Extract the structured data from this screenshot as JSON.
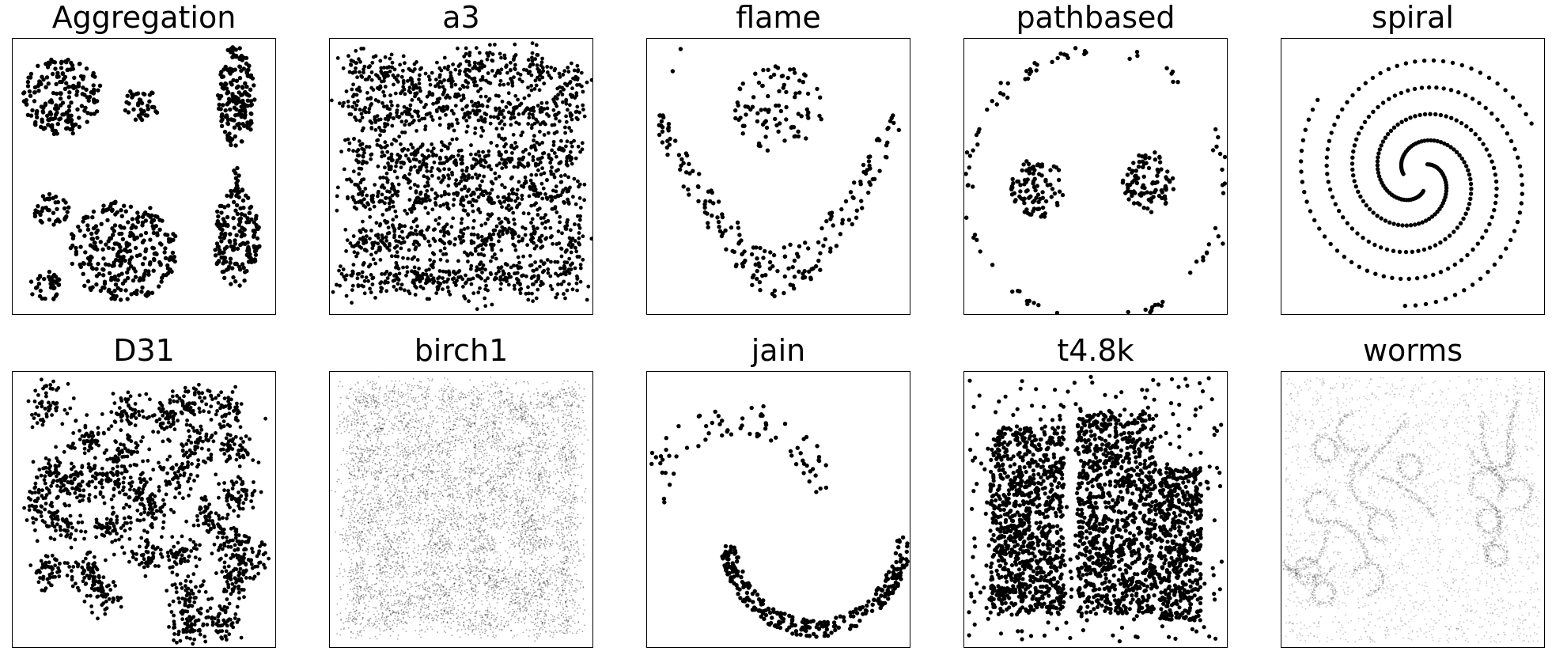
{
  "figure": {
    "panels": [
      {
        "title": "Aggregation"
      },
      {
        "title": "a3"
      },
      {
        "title": "flame"
      },
      {
        "title": "pathbased"
      },
      {
        "title": "spiral"
      },
      {
        "title": "D31"
      },
      {
        "title": "birch1"
      },
      {
        "title": "jain"
      },
      {
        "title": "t4.8k"
      },
      {
        "title": "worms"
      }
    ]
  },
  "chart_data": [
    {
      "type": "scatter",
      "title": "Aggregation",
      "xticks": [],
      "yticks": [],
      "grid": false,
      "marker_color": "#000000",
      "clusters": [
        {
          "shape": "blob",
          "center": [
            0.19,
            0.79
          ],
          "spread": [
            0.15,
            0.14
          ],
          "n": 200
        },
        {
          "shape": "blob",
          "center": [
            0.49,
            0.76
          ],
          "spread": [
            0.07,
            0.06
          ],
          "n": 40
        },
        {
          "shape": "blob",
          "center": [
            0.85,
            0.79
          ],
          "spread": [
            0.07,
            0.19
          ],
          "n": 180
        },
        {
          "shape": "blob",
          "center": [
            0.85,
            0.28
          ],
          "spread": [
            0.09,
            0.18
          ],
          "n": 170
        },
        {
          "shape": "line",
          "from": [
            0.85,
            0.53
          ],
          "to": [
            0.85,
            0.43
          ],
          "n": 12
        },
        {
          "shape": "blob",
          "center": [
            0.42,
            0.23
          ],
          "spread": [
            0.21,
            0.18
          ],
          "n": 300
        },
        {
          "shape": "blob",
          "center": [
            0.15,
            0.38
          ],
          "spread": [
            0.07,
            0.06
          ],
          "n": 40
        },
        {
          "shape": "blob",
          "center": [
            0.13,
            0.1
          ],
          "spread": [
            0.06,
            0.06
          ],
          "n": 35
        }
      ]
    },
    {
      "type": "scatter",
      "title": "a3",
      "xticks": [],
      "yticks": [],
      "grid": false,
      "marker_color": "#000000",
      "clusters": [
        {
          "shape": "grid-blobs",
          "rows": 6,
          "cols": 8,
          "n_per_blob": 45,
          "spread": 0.038,
          "range": [
            [
              0.06,
              0.95
            ],
            [
              0.06,
              0.94
            ]
          ]
        }
      ]
    },
    {
      "type": "scatter",
      "title": "flame",
      "xticks": [],
      "yticks": [],
      "grid": false,
      "marker_color": "#000000",
      "clusters": [
        {
          "shape": "blob",
          "center": [
            0.5,
            0.74
          ],
          "spread": [
            0.17,
            0.16
          ],
          "n": 90
        },
        {
          "shape": "u-shape",
          "x_range": [
            0.04,
            0.96
          ],
          "bottom": 0.05,
          "top": 0.66,
          "thickness": 0.2,
          "n": 200
        },
        {
          "shape": "points",
          "points": [
            [
              0.13,
              0.96
            ],
            [
              0.1,
              0.88
            ]
          ]
        }
      ]
    },
    {
      "type": "scatter",
      "title": "pathbased",
      "xticks": [],
      "yticks": [],
      "grid": false,
      "marker_color": "#000000",
      "clusters": [
        {
          "shape": "arc",
          "center": [
            0.5,
            0.46
          ],
          "radius": 0.49,
          "start_deg": -130,
          "end_deg": 240,
          "n": 110
        },
        {
          "shape": "blob",
          "center": [
            0.28,
            0.46
          ],
          "spread": [
            0.1,
            0.11
          ],
          "n": 95
        },
        {
          "shape": "blob",
          "center": [
            0.7,
            0.48
          ],
          "spread": [
            0.1,
            0.11
          ],
          "n": 95
        }
      ]
    },
    {
      "type": "scatter",
      "title": "spiral",
      "xticks": [],
      "yticks": [],
      "grid": false,
      "marker_color": "#000000",
      "clusters": [
        {
          "shape": "spiral",
          "center": [
            0.52,
            0.5
          ],
          "turns": 1.6,
          "r_max": 0.47,
          "phase_deg": 0,
          "n": 106
        },
        {
          "shape": "spiral",
          "center": [
            0.52,
            0.5
          ],
          "turns": 1.6,
          "r_max": 0.47,
          "phase_deg": 120,
          "n": 106
        },
        {
          "shape": "spiral",
          "center": [
            0.52,
            0.5
          ],
          "turns": 1.6,
          "r_max": 0.47,
          "phase_deg": 240,
          "n": 106
        }
      ]
    },
    {
      "type": "scatter",
      "title": "D31",
      "xticks": [],
      "yticks": [],
      "grid": false,
      "marker_color": "#000000",
      "clusters": [
        {
          "shape": "blob-list",
          "spread": 0.035,
          "n_per_blob": 55,
          "centers": [
            [
              0.13,
              0.88
            ],
            [
              0.44,
              0.85
            ],
            [
              0.58,
              0.83
            ],
            [
              0.68,
              0.88
            ],
            [
              0.81,
              0.86
            ],
            [
              0.85,
              0.72
            ],
            [
              0.28,
              0.75
            ],
            [
              0.16,
              0.63
            ],
            [
              0.34,
              0.61
            ],
            [
              0.43,
              0.7
            ],
            [
              0.63,
              0.62
            ],
            [
              0.75,
              0.48
            ],
            [
              0.86,
              0.55
            ],
            [
              0.11,
              0.52
            ],
            [
              0.2,
              0.45
            ],
            [
              0.38,
              0.44
            ],
            [
              0.53,
              0.5
            ],
            [
              0.83,
              0.38
            ],
            [
              0.14,
              0.28
            ],
            [
              0.27,
              0.27
            ],
            [
              0.34,
              0.19
            ],
            [
              0.64,
              0.33
            ],
            [
              0.67,
              0.18
            ],
            [
              0.84,
              0.24
            ],
            [
              0.8,
              0.1
            ],
            [
              0.67,
              0.08
            ],
            [
              0.52,
              0.34
            ],
            [
              0.24,
              0.58
            ],
            [
              0.47,
              0.57
            ],
            [
              0.7,
              0.74
            ],
            [
              0.9,
              0.31
            ]
          ]
        }
      ]
    },
    {
      "type": "scatter",
      "title": "birch1",
      "xticks": [],
      "yticks": [],
      "grid": false,
      "marker_color": "#000000",
      "clusters": [
        {
          "shape": "grid-blobs",
          "rows": 10,
          "cols": 10,
          "n_per_blob": 60,
          "spread": 0.028,
          "range": [
            [
              0.06,
              0.94
            ],
            [
              0.06,
              0.94
            ]
          ],
          "background_noise": 900
        }
      ]
    },
    {
      "type": "scatter",
      "title": "jain",
      "xticks": [],
      "yticks": [],
      "grid": false,
      "marker_color": "#000000",
      "clusters": [
        {
          "shape": "moon-upper",
          "center": [
            0.35,
            0.5
          ],
          "radius": 0.33,
          "start_deg": 10,
          "end_deg": 175,
          "thickness": 0.12,
          "n": 80
        },
        {
          "shape": "moon-lower",
          "center": [
            0.64,
            0.4
          ],
          "radius": 0.33,
          "start_deg": 185,
          "end_deg": 360,
          "thickness": 0.06,
          "n": 290
        }
      ]
    },
    {
      "type": "scatter",
      "title": "t4.8k",
      "xticks": [],
      "yticks": [],
      "grid": false,
      "marker_color": "#000000",
      "clusters": [
        {
          "shape": "rect",
          "x_range": [
            0.1,
            0.38
          ],
          "y_range": [
            0.12,
            0.8
          ],
          "n": 900
        },
        {
          "shape": "rect",
          "x_range": [
            0.43,
            0.73
          ],
          "y_range": [
            0.12,
            0.85
          ],
          "n": 900
        },
        {
          "shape": "rect",
          "x_range": [
            0.74,
            0.9
          ],
          "y_range": [
            0.1,
            0.65
          ],
          "n": 500
        },
        {
          "shape": "noise",
          "x_range": [
            0.02,
            0.98
          ],
          "y_range": [
            0.02,
            0.98
          ],
          "n": 320
        }
      ]
    },
    {
      "type": "scatter",
      "title": "worms",
      "xticks": [],
      "yticks": [],
      "grid": false,
      "marker_color": "#000000",
      "clusters": [
        {
          "shape": "worms",
          "n_worms": 22,
          "region": [
            [
              0.12,
              0.88
            ],
            [
              0.2,
              0.8
            ]
          ],
          "n_per_worm": 120,
          "background_noise": 2200
        }
      ]
    }
  ]
}
